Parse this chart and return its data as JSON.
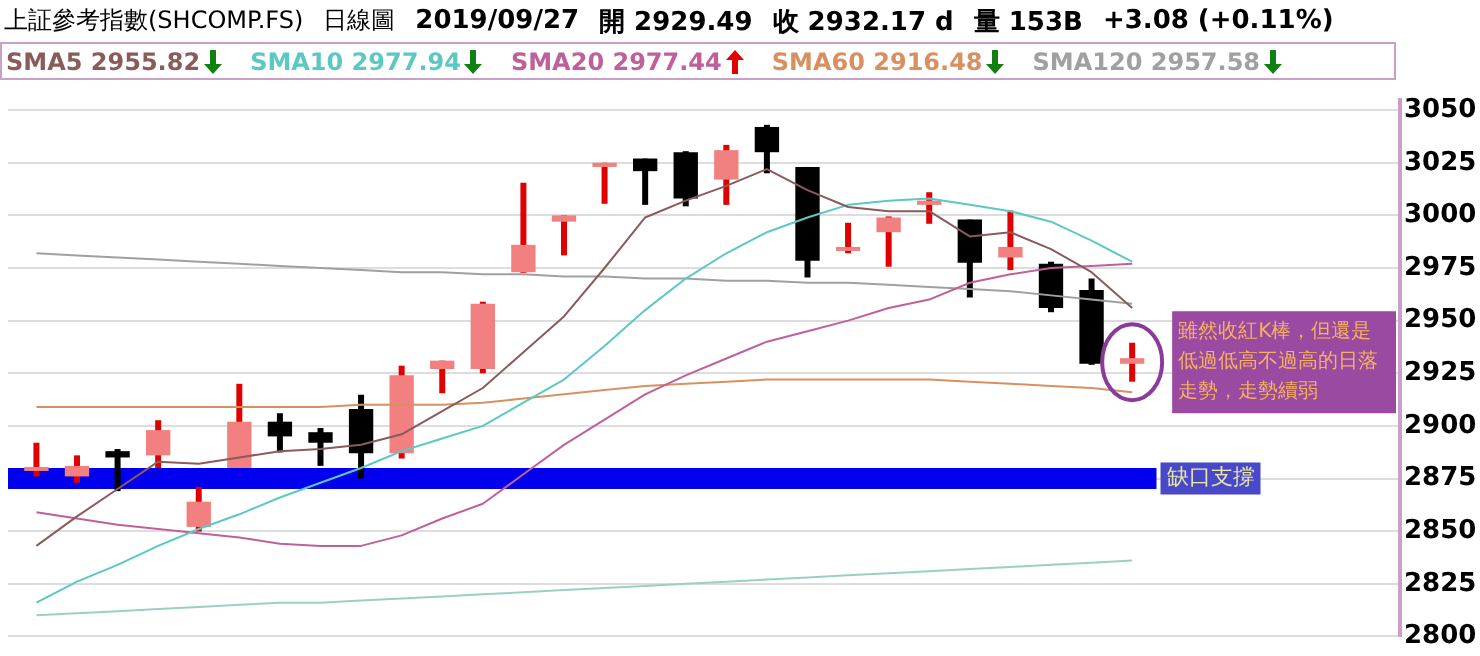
{
  "chart_data": {
    "type": "candlestick",
    "title": "上証參考指數(SHCOMP.FS)",
    "subtitle": "日線圖",
    "categories": [
      null,
      null,
      null,
      null,
      null,
      null,
      null,
      null,
      null,
      null,
      null,
      null,
      null,
      null,
      null,
      null,
      null,
      null,
      null,
      null,
      null,
      null,
      null,
      null,
      null,
      null,
      null,
      null
    ],
    "ohlc": [
      [
        2879.5,
        2892,
        2876,
        2880.5
      ],
      [
        2876,
        2886,
        2873,
        2881
      ],
      [
        2888,
        2889,
        2869,
        2885
      ],
      [
        2886,
        2902.7,
        2880,
        2898
      ],
      [
        2852,
        2871,
        2849.8,
        2864
      ],
      [
        2880,
        2920,
        2880,
        2902
      ],
      [
        2902,
        2906,
        2887.4,
        2895
      ],
      [
        2897,
        2899,
        2881,
        2892
      ],
      [
        2908,
        2914.8,
        2875,
        2887
      ],
      [
        2887,
        2928.6,
        2884.5,
        2924
      ],
      [
        2927,
        2931,
        2915.5,
        2931
      ],
      [
        2927,
        2959,
        2925,
        2958
      ],
      [
        2973,
        3015.5,
        2972.7,
        2986
      ],
      [
        2997,
        3000,
        2981,
        3000
      ],
      [
        3023,
        3025,
        3005.5,
        3025
      ],
      [
        3027,
        3027,
        3005,
        3021
      ],
      [
        3030,
        3030.5,
        3004.3,
        3008
      ],
      [
        3017,
        3033.5,
        3005,
        3031
      ],
      [
        3042,
        3043,
        3020,
        3030
      ],
      [
        3023,
        3023,
        2970.5,
        2978.5
      ],
      [
        2984,
        2996.5,
        2982,
        2985
      ],
      [
        2992,
        2999.5,
        2975.6,
        2999
      ],
      [
        3005,
        3011,
        2996,
        3007
      ],
      [
        2998,
        2998,
        2961,
        2977.5
      ],
      [
        2980,
        3002.3,
        2974,
        2985
      ],
      [
        2977,
        2978,
        2954,
        2956
      ],
      [
        2964.6,
        2970,
        2929,
        2929.5
      ],
      [
        2929.49,
        2939.5,
        2921,
        2932.17
      ]
    ],
    "series": [
      {
        "name": "SMA5 2955.82",
        "type": "line",
        "color": "#8b5a5a",
        "values": [
          2843,
          2857,
          2870,
          2883,
          2882,
          2885,
          2888,
          2889,
          2891,
          2896,
          2907,
          2918,
          2935,
          2952,
          2975,
          2999,
          3007,
          3014,
          3022,
          3012,
          3004,
          3002,
          3002,
          2990,
          2992,
          2984,
          2973,
          2956
        ]
      },
      {
        "name": "SMA10 2977.94",
        "type": "line",
        "color": "#5cc8c4",
        "values": [
          2816,
          2826,
          2834,
          2843,
          2851,
          2858,
          2866,
          2873,
          2880,
          2888,
          2894,
          2900,
          2911,
          2922,
          2938,
          2955,
          2970,
          2982,
          2992,
          2999,
          3005,
          3007,
          3008,
          3005,
          3002,
          2997,
          2988,
          2978
        ]
      },
      {
        "name": "SMA20 2977.44",
        "type": "line",
        "color": "#c0609a",
        "values": [
          2859,
          2856,
          2853,
          2851,
          2849,
          2847,
          2844,
          2843,
          2843,
          2848,
          2856,
          2863,
          2877,
          2891,
          2903,
          2915,
          2924,
          2932,
          2940,
          2945,
          2950,
          2956,
          2960,
          2968,
          2972,
          2975,
          2976,
          2977
        ]
      },
      {
        "name": "SMA60 2916.48",
        "type": "line",
        "color": "#d89060",
        "values": [
          2909,
          2909,
          2909,
          2909,
          2909,
          2909,
          2909,
          2909,
          2910,
          2910,
          2910,
          2911,
          2913,
          2915,
          2917,
          2919,
          2920,
          2921,
          2922,
          2922,
          2922,
          2922,
          2922,
          2921,
          2920,
          2919,
          2918,
          2916
        ]
      },
      {
        "name": "SMA120 2957.58",
        "type": "line",
        "color": "#a0a0a0",
        "values": [
          2982,
          2981,
          2980,
          2979,
          2978,
          2977,
          2976,
          2975,
          2974,
          2973,
          2973,
          2972,
          2972,
          2971,
          2971,
          2970,
          2970,
          2969,
          2969,
          2968,
          2968,
          2967,
          2966,
          2965,
          2964,
          2962,
          2960,
          2958
        ]
      },
      {
        "type": "line",
        "color": "#9ad0c4",
        "values": [
          2810,
          2811,
          2812,
          2813,
          2814,
          2815,
          2816,
          2816,
          2817,
          2818,
          2819,
          2820,
          2821,
          2822,
          2823,
          2824,
          2825,
          2826,
          2827,
          2828,
          2829,
          2830,
          2831,
          2832,
          2833,
          2834,
          2835,
          2836
        ]
      }
    ],
    "ylim": [
      2800,
      3055
    ],
    "yticks": [
      2800,
      2825,
      2850,
      2875,
      2900,
      2925,
      2950,
      2975,
      3000,
      3025,
      3050
    ],
    "bands": [
      {
        "axis": "y",
        "from": 2870,
        "to": 2880,
        "label": "缺口支撐",
        "color": "#0000ee"
      }
    ],
    "annotations": [
      "2019/09/27",
      "開 2929.49",
      "收 2932.17 d",
      "量 153B",
      "+3.08 (+0.11%)",
      "雖然收紅K棒，但還是低過低高不過高的日落走勢，走勢續弱"
    ],
    "grid": "y",
    "legend": "top",
    "tick_labels": "y",
    "marker": "none",
    "line_style": "solid"
  }
}
